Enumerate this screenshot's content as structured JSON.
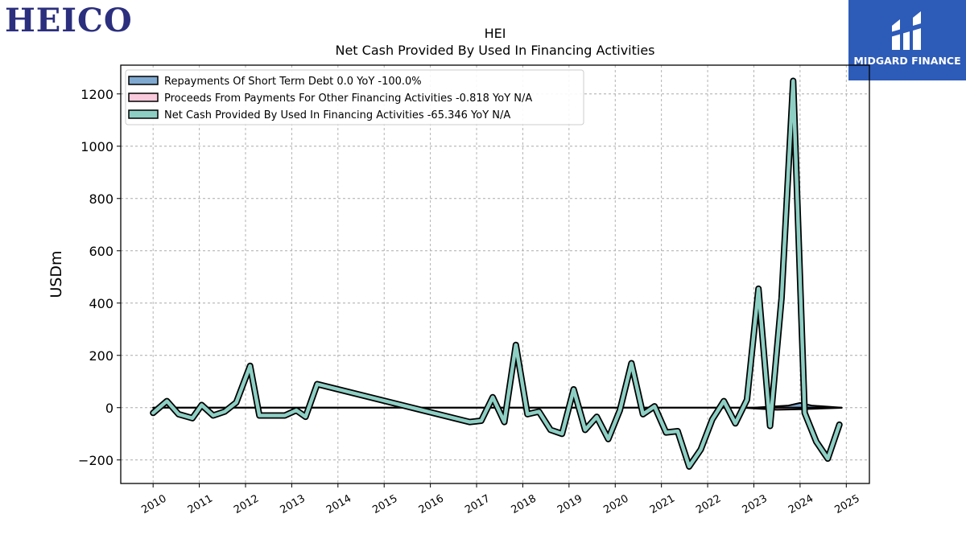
{
  "brand": {
    "name": "HEICO",
    "badge_text": "MIDGARD FINANCE"
  },
  "chart_data": {
    "type": "line",
    "title": "HEI",
    "subtitle": "Net Cash Provided By Used In Financing Activities",
    "ylabel": "USDm",
    "xlabel": "",
    "ylim": [
      -290,
      1310
    ],
    "xlim": [
      2009.3,
      2025.5
    ],
    "yticks": [
      -200,
      0,
      200,
      400,
      600,
      800,
      1000,
      1200
    ],
    "yticklabels": [
      "−200",
      "0",
      "200",
      "400",
      "600",
      "800",
      "1000",
      "1200"
    ],
    "xticks": [
      "2010",
      "2011",
      "2012",
      "2013",
      "2014",
      "2015",
      "2016",
      "2017",
      "2018",
      "2019",
      "2020",
      "2021",
      "2022",
      "2023",
      "2024",
      "2025"
    ],
    "grid": true,
    "legend_placement": "top-left",
    "series": [
      {
        "name": "Repayments Of Short Term Debt",
        "legend_label": "Repayments Of Short Term Debt  0.0 YoY -100.0%",
        "style": "area",
        "color": "#7fa9d0",
        "x": [
          2010.0,
          2011.0,
          2012.0,
          2013.0,
          2014.0,
          2015.0,
          2016.0,
          2017.0,
          2018.0,
          2019.0,
          2020.0,
          2021.0,
          2022.0,
          2023.0,
          2023.75,
          2024.0,
          2024.25,
          2024.9
        ],
        "values": [
          0,
          0,
          0,
          0,
          0,
          0,
          0,
          0,
          0,
          0,
          0,
          0,
          0,
          0,
          8,
          18,
          8,
          0
        ]
      },
      {
        "name": "Proceeds From Payments For Other Financing Activities",
        "legend_label": "Proceeds From Payments For Other Financing Activities  -0.818 YoY N/A",
        "style": "area",
        "color": "#f9c9dc",
        "x": [
          2010.0,
          2011.0,
          2012.0,
          2013.0,
          2014.0,
          2015.0,
          2016.0,
          2017.0,
          2018.0,
          2019.0,
          2020.0,
          2021.0,
          2022.0,
          2022.75,
          2023.0,
          2023.5,
          2024.0,
          2024.9
        ],
        "values": [
          0,
          0,
          0,
          0,
          0,
          0,
          0,
          0,
          0,
          0,
          0,
          0,
          0,
          0,
          -3,
          -8,
          -6,
          -0.818
        ]
      },
      {
        "name": "Net Cash Provided By Used In Financing Activities",
        "legend_label": "Net Cash Provided By Used In Financing Activities  -65.346 YoY N/A",
        "style": "line",
        "color": "#8ecfc4",
        "x": [
          2010.0,
          2010.3,
          2010.55,
          2010.85,
          2011.05,
          2011.3,
          2011.55,
          2011.8,
          2012.1,
          2012.3,
          2012.6,
          2012.85,
          2013.1,
          2013.3,
          2013.55,
          2016.85,
          2017.1,
          2017.35,
          2017.6,
          2017.85,
          2018.1,
          2018.35,
          2018.6,
          2018.85,
          2019.1,
          2019.35,
          2019.6,
          2019.85,
          2020.1,
          2020.35,
          2020.6,
          2020.85,
          2021.1,
          2021.35,
          2021.6,
          2021.85,
          2022.1,
          2022.35,
          2022.6,
          2022.85,
          2023.1,
          2023.35,
          2023.6,
          2023.85,
          2024.1,
          2024.35,
          2024.6,
          2024.85
        ],
        "values": [
          -20,
          25,
          -25,
          -40,
          10,
          -30,
          -15,
          20,
          160,
          -30,
          -30,
          -30,
          -10,
          -35,
          90,
          -55,
          -50,
          40,
          -55,
          240,
          -25,
          -15,
          -85,
          -100,
          70,
          -85,
          -35,
          -120,
          -10,
          170,
          -25,
          5,
          -95,
          -90,
          -225,
          -160,
          -45,
          25,
          -60,
          30,
          455,
          -70,
          420,
          1250,
          -20,
          -130,
          -195,
          -65
        ]
      }
    ]
  }
}
